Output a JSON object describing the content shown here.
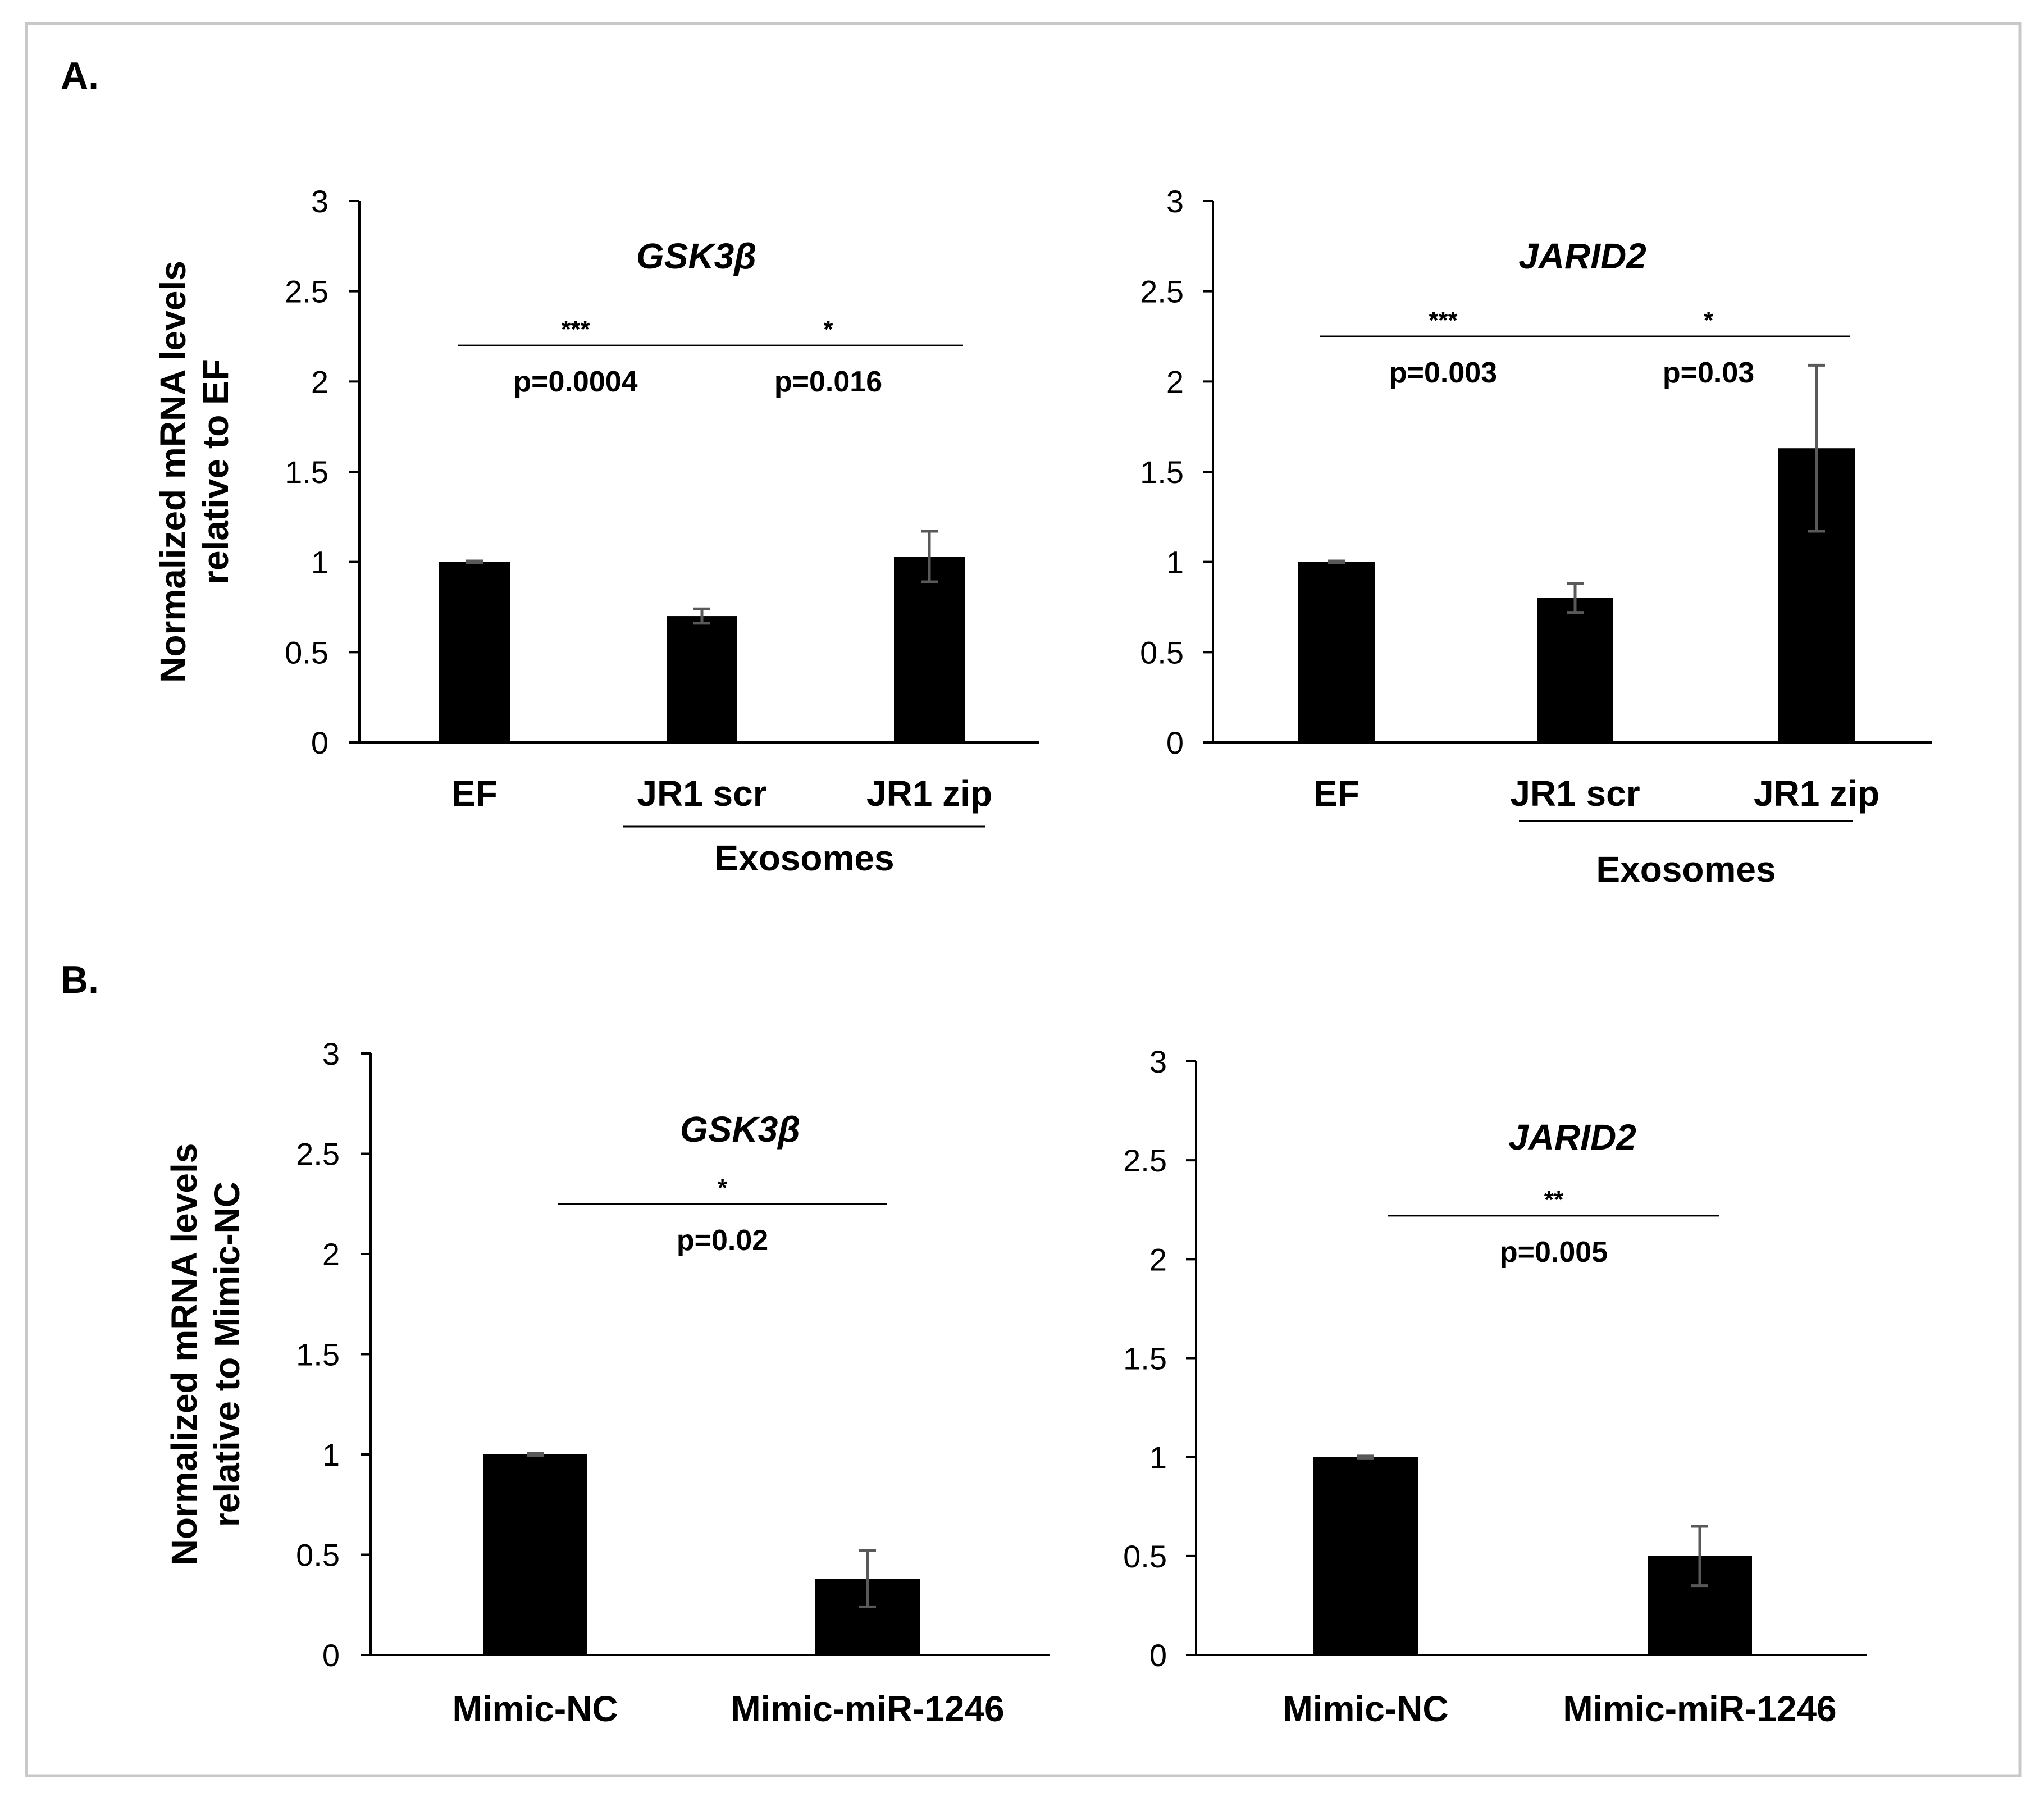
{
  "panels": [
    {
      "letter": "A."
    },
    {
      "letter": "B."
    }
  ],
  "chart_data": [
    {
      "type": "bar",
      "panel": "A",
      "title": "GSK3β",
      "ylabel": [
        "Normalized mRNA levels",
        "relative to EF"
      ],
      "ylim": [
        0,
        3
      ],
      "yticks": [
        "0",
        "0.5",
        "1",
        "1.5",
        "2",
        "2.5",
        "3"
      ],
      "categories": [
        "EF",
        "JR1 scr",
        "JR1 zip"
      ],
      "values": [
        1.0,
        0.7,
        1.03
      ],
      "errors": [
        0.005,
        0.04,
        0.14
      ],
      "group": {
        "label": "Exosomes",
        "from": 1,
        "to": 2
      },
      "significance": [
        {
          "from": 0,
          "to": 1,
          "stars": "***",
          "p": "p=0.0004",
          "level": 2.2
        },
        {
          "from": 1,
          "to": 2,
          "stars": "*",
          "p": "p=0.016",
          "level": 2.2
        }
      ]
    },
    {
      "type": "bar",
      "panel": "A",
      "title": "JARID2",
      "ylim": [
        0,
        3
      ],
      "yticks": [
        "0",
        "0.5",
        "1",
        "1.5",
        "2",
        "2.5",
        "3"
      ],
      "categories": [
        "EF",
        "JR1 scr",
        "JR1 zip"
      ],
      "values": [
        1.0,
        0.8,
        1.63
      ],
      "errors": [
        0.005,
        0.08,
        0.46
      ],
      "group": {
        "label": "Exosomes",
        "from": 1,
        "to": 2
      },
      "significance": [
        {
          "from": 0,
          "to": 1,
          "stars": "***",
          "p": "p=0.003",
          "level": 2.25
        },
        {
          "from": 1,
          "to": 2,
          "stars": "*",
          "p": "p=0.03",
          "level": 2.25
        }
      ]
    },
    {
      "type": "bar",
      "panel": "B",
      "title": "GSK3β",
      "ylabel": [
        "Normalized mRNA levels",
        "relative to Mimic-NC"
      ],
      "ylim": [
        0,
        3
      ],
      "yticks": [
        "0",
        "0.5",
        "1",
        "1.5",
        "2",
        "2.5",
        "3"
      ],
      "categories": [
        "Mimic-NC",
        "Mimic-miR-1246"
      ],
      "values": [
        1.0,
        0.38
      ],
      "errors": [
        0.005,
        0.14
      ],
      "significance": [
        {
          "from": 0,
          "to": 1,
          "stars": "*",
          "p": "p=0.02",
          "level": 2.25
        }
      ]
    },
    {
      "type": "bar",
      "panel": "B",
      "title": "JARID2",
      "ylim": [
        0,
        3
      ],
      "yticks": [
        "0",
        "0.5",
        "1",
        "1.5",
        "2",
        "2.5",
        "3"
      ],
      "categories": [
        "Mimic-NC",
        "Mimic-miR-1246"
      ],
      "values": [
        1.0,
        0.5
      ],
      "errors": [
        0.005,
        0.15
      ],
      "significance": [
        {
          "from": 0,
          "to": 1,
          "stars": "**",
          "p": "p=0.005",
          "level": 2.22
        }
      ]
    }
  ]
}
